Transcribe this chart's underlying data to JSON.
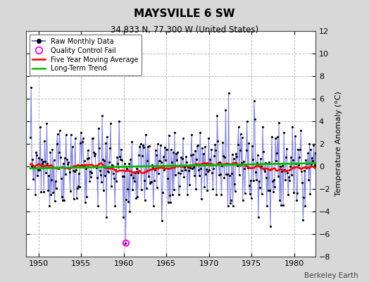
{
  "title": "MAYSVILLE 6 SW",
  "subtitle": "34.833 N, 77.300 W (United States)",
  "ylabel": "Temperature Anomaly (°C)",
  "credit": "Berkeley Earth",
  "xlim": [
    1948.5,
    1982.5
  ],
  "ylim": [
    -8,
    12
  ],
  "yticks": [
    -8,
    -6,
    -4,
    -2,
    0,
    2,
    4,
    6,
    8,
    10,
    12
  ],
  "xticks": [
    1950,
    1955,
    1960,
    1965,
    1970,
    1975,
    1980
  ],
  "raw_color": "#5555cc",
  "dot_color": "#000000",
  "mavg_color": "#ff0000",
  "trend_color": "#00bb00",
  "qc_color": "#ff00ff",
  "bg_color": "#d8d8d8",
  "plot_bg": "#ffffff",
  "grid_color": "#bbbbbb",
  "raw_alpha": 0.7,
  "qc_x": 1960.25,
  "qc_y": -6.8
}
